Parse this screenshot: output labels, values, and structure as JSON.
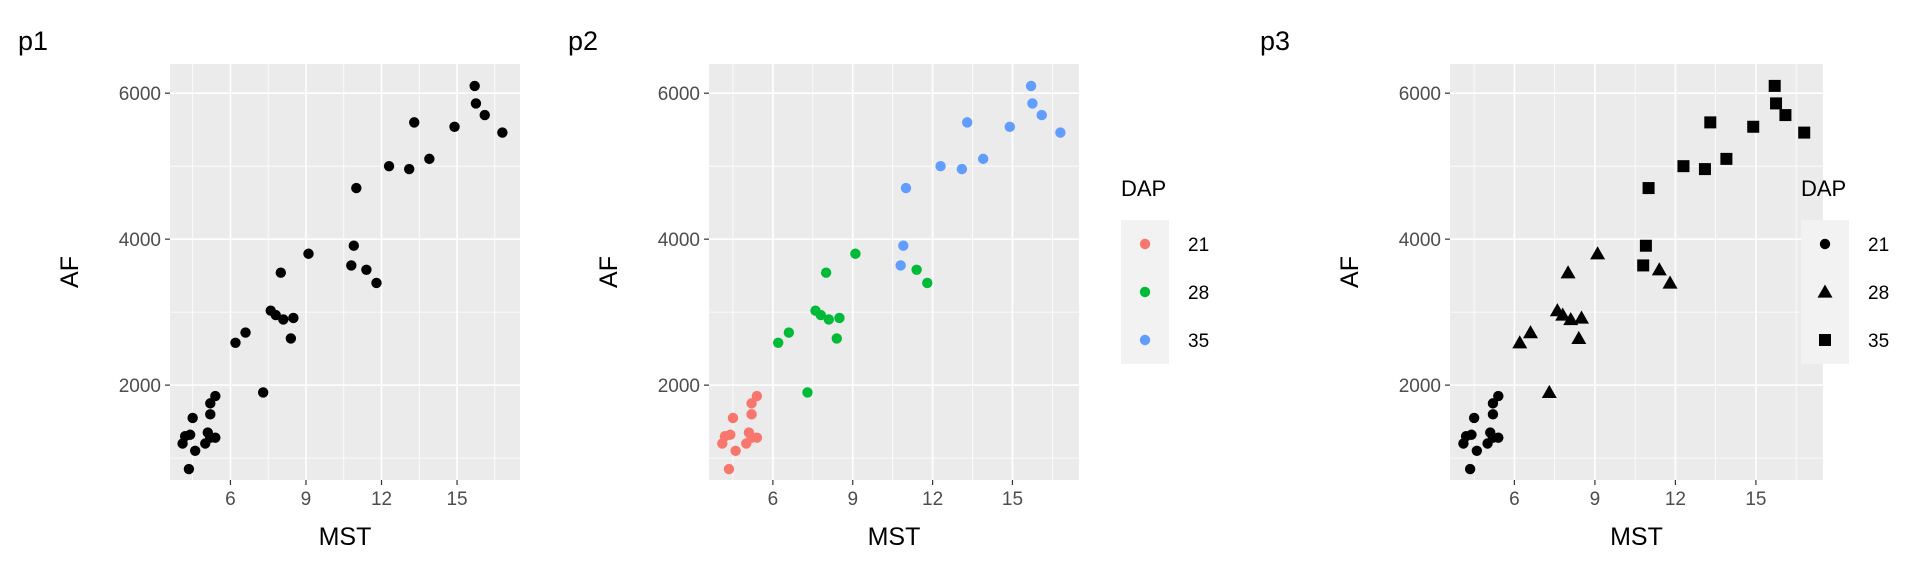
{
  "chart_data": [
    {
      "id": "p1",
      "type": "scatter",
      "tag": "p1",
      "xlabel": "MST",
      "ylabel": "AF",
      "xlim": [
        3.6,
        17.5
      ],
      "ylim": [
        700,
        6400
      ],
      "xticks": [
        6,
        9,
        12,
        15
      ],
      "yticks": [
        2000,
        4000,
        6000
      ],
      "grid": true,
      "encoding": "none",
      "legend": null
    },
    {
      "id": "p2",
      "type": "scatter",
      "tag": "p2",
      "xlabel": "MST",
      "ylabel": "AF",
      "xlim": [
        3.6,
        17.5
      ],
      "ylim": [
        700,
        6400
      ],
      "xticks": [
        6,
        9,
        12,
        15
      ],
      "yticks": [
        2000,
        4000,
        6000
      ],
      "grid": true,
      "encoding": "color",
      "legend": {
        "title": "DAP",
        "position": "right",
        "entries": [
          "21",
          "28",
          "35"
        ]
      }
    },
    {
      "id": "p3",
      "type": "scatter",
      "tag": "p3",
      "xlabel": "MST",
      "ylabel": "AF",
      "xlim": [
        3.6,
        17.5
      ],
      "ylim": [
        700,
        6400
      ],
      "xticks": [
        6,
        9,
        12,
        15
      ],
      "yticks": [
        2000,
        4000,
        6000
      ],
      "grid": true,
      "encoding": "shape",
      "legend": {
        "title": "DAP",
        "position": "right",
        "entries": [
          "21",
          "28",
          "35"
        ]
      }
    }
  ],
  "groups": [
    {
      "dap": "21",
      "color": "#F8766D",
      "shape": "circle",
      "points": [
        [
          4.1,
          1200
        ],
        [
          4.2,
          1300
        ],
        [
          4.4,
          1320
        ],
        [
          4.6,
          1100
        ],
        [
          4.5,
          1550
        ],
        [
          5.1,
          1350
        ],
        [
          5.0,
          1200
        ],
        [
          5.2,
          1280
        ],
        [
          5.4,
          1280
        ],
        [
          5.2,
          1600
        ],
        [
          5.2,
          1750
        ],
        [
          5.4,
          1850
        ],
        [
          4.35,
          850
        ]
      ]
    },
    {
      "dap": "28",
      "color": "#00BA38",
      "shape": "triangle",
      "points": [
        [
          6.2,
          2580
        ],
        [
          6.6,
          2720
        ],
        [
          7.3,
          1900
        ],
        [
          7.6,
          3020
        ],
        [
          7.8,
          2960
        ],
        [
          8.1,
          2900
        ],
        [
          8.0,
          3540
        ],
        [
          8.5,
          2920
        ],
        [
          8.4,
          2640
        ],
        [
          9.1,
          3800
        ],
        [
          11.4,
          3580
        ],
        [
          11.8,
          3400
        ]
      ]
    },
    {
      "dap": "35",
      "color": "#619CFF",
      "shape": "square",
      "points": [
        [
          10.8,
          3640
        ],
        [
          10.9,
          3910
        ],
        [
          11.0,
          4700
        ],
        [
          12.3,
          5000
        ],
        [
          13.1,
          4960
        ],
        [
          13.3,
          5600
        ],
        [
          13.9,
          5100
        ],
        [
          14.9,
          5540
        ],
        [
          15.7,
          6100
        ],
        [
          15.75,
          5860
        ],
        [
          16.1,
          5700
        ],
        [
          16.8,
          5460
        ]
      ]
    }
  ]
}
